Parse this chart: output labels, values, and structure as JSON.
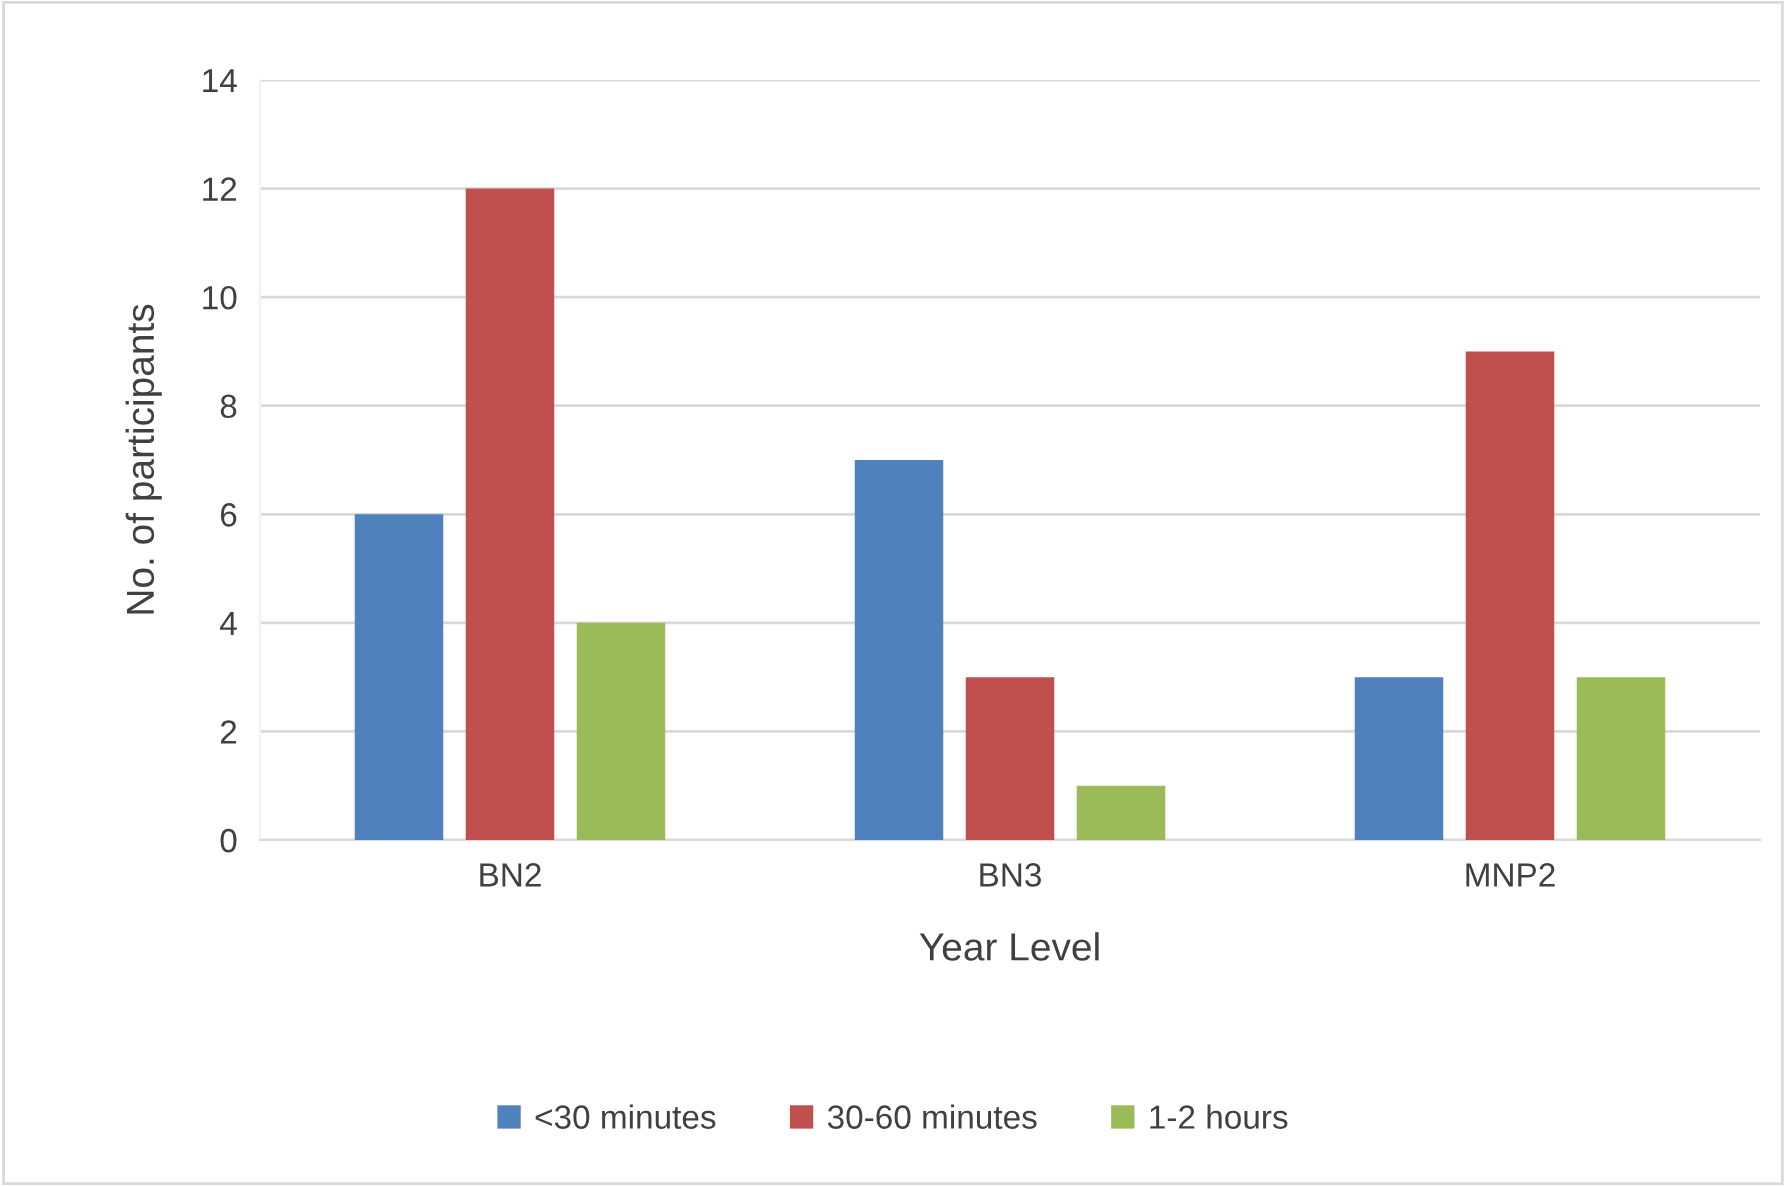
{
  "chart_data": {
    "type": "bar",
    "xlabel": "Year Level",
    "ylabel": "No. of participants",
    "categories": [
      "BN2",
      "BN3",
      "MNP2"
    ],
    "series": [
      {
        "name": "<30 minutes",
        "color": "#4f81bd",
        "values": [
          6,
          7,
          3
        ]
      },
      {
        "name": "30-60 minutes",
        "color": "#c0504d",
        "values": [
          12,
          3,
          9
        ]
      },
      {
        "name": "1-2 hours",
        "color": "#9bbb59",
        "values": [
          4,
          1,
          3
        ]
      }
    ],
    "ylim": [
      0,
      14
    ],
    "yticks": [
      0,
      2,
      4,
      6,
      8,
      10,
      12,
      14
    ],
    "grid": "y",
    "legend": "bottom"
  }
}
